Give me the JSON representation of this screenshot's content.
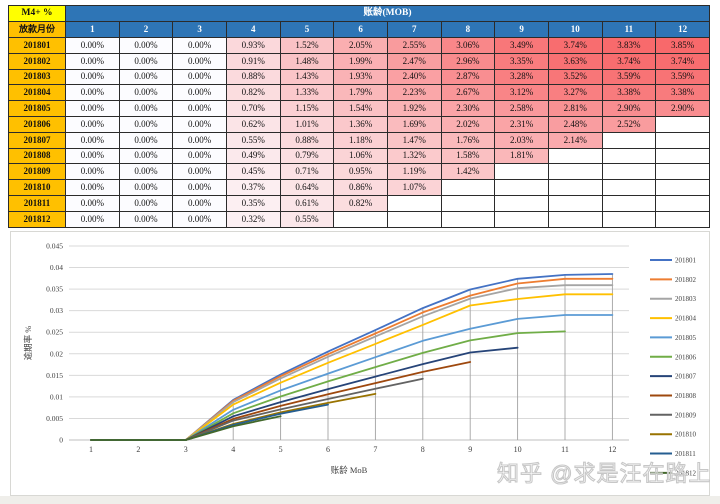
{
  "page": {
    "watermark": "知乎 @求是汪在路上"
  },
  "table": {
    "corner_label": "M4+ %",
    "col_group_header": "账龄(MOB)",
    "row_group_header": "放款月份",
    "mob_columns": [
      "1",
      "2",
      "3",
      "4",
      "5",
      "6",
      "7",
      "8",
      "9",
      "10",
      "11",
      "12"
    ],
    "heatmap": {
      "min_color": "#FCFCFF",
      "max_color": "#F8696B",
      "min_value": 0,
      "max_value": 3.85
    },
    "rows": [
      {
        "vintage": "201801",
        "values_pct": [
          0.0,
          0.0,
          0.0,
          0.93,
          1.52,
          2.05,
          2.55,
          3.06,
          3.49,
          3.74,
          3.83,
          3.85
        ]
      },
      {
        "vintage": "201802",
        "values_pct": [
          0.0,
          0.0,
          0.0,
          0.91,
          1.48,
          1.99,
          2.47,
          2.96,
          3.35,
          3.63,
          3.74,
          3.74
        ]
      },
      {
        "vintage": "201803",
        "values_pct": [
          0.0,
          0.0,
          0.0,
          0.88,
          1.43,
          1.93,
          2.4,
          2.87,
          3.28,
          3.52,
          3.59,
          3.59
        ]
      },
      {
        "vintage": "201804",
        "values_pct": [
          0.0,
          0.0,
          0.0,
          0.82,
          1.33,
          1.79,
          2.23,
          2.67,
          3.12,
          3.27,
          3.38,
          3.38
        ]
      },
      {
        "vintage": "201805",
        "values_pct": [
          0.0,
          0.0,
          0.0,
          0.7,
          1.15,
          1.54,
          1.92,
          2.3,
          2.58,
          2.81,
          2.9,
          2.9
        ]
      },
      {
        "vintage": "201806",
        "values_pct": [
          0.0,
          0.0,
          0.0,
          0.62,
          1.01,
          1.36,
          1.69,
          2.02,
          2.31,
          2.48,
          2.52
        ]
      },
      {
        "vintage": "201807",
        "values_pct": [
          0.0,
          0.0,
          0.0,
          0.55,
          0.88,
          1.18,
          1.47,
          1.76,
          2.03,
          2.14
        ]
      },
      {
        "vintage": "201808",
        "values_pct": [
          0.0,
          0.0,
          0.0,
          0.49,
          0.79,
          1.06,
          1.32,
          1.58,
          1.81
        ]
      },
      {
        "vintage": "201809",
        "values_pct": [
          0.0,
          0.0,
          0.0,
          0.45,
          0.71,
          0.95,
          1.19,
          1.42
        ]
      },
      {
        "vintage": "201810",
        "values_pct": [
          0.0,
          0.0,
          0.0,
          0.37,
          0.64,
          0.86,
          1.07
        ]
      },
      {
        "vintage": "201811",
        "values_pct": [
          0.0,
          0.0,
          0.0,
          0.35,
          0.61,
          0.82
        ]
      },
      {
        "vintage": "201812",
        "values_pct": [
          0.0,
          0.0,
          0.0,
          0.32,
          0.55
        ]
      }
    ]
  },
  "chart_data": {
    "type": "line",
    "title": "",
    "xlabel": "账龄 MoB",
    "ylabel": "逾期率 %",
    "x": [
      1,
      2,
      3,
      4,
      5,
      6,
      7,
      8,
      9,
      10,
      11,
      12
    ],
    "ylim": [
      0,
      0.045
    ],
    "ytick_step": 0.005,
    "grid": true,
    "drop_lines": true,
    "legend_position": "right",
    "series": [
      {
        "name": "201801",
        "color": "#4472C4",
        "values": [
          0,
          0,
          0,
          0.0093,
          0.0152,
          0.0205,
          0.0255,
          0.0306,
          0.0349,
          0.0374,
          0.0383,
          0.0385
        ]
      },
      {
        "name": "201802",
        "color": "#ED7D31",
        "values": [
          0,
          0,
          0,
          0.0091,
          0.0148,
          0.0199,
          0.0247,
          0.0296,
          0.0335,
          0.0363,
          0.0374,
          0.0374
        ]
      },
      {
        "name": "201803",
        "color": "#A5A5A5",
        "values": [
          0,
          0,
          0,
          0.0088,
          0.0143,
          0.0193,
          0.024,
          0.0287,
          0.0328,
          0.0352,
          0.0359,
          0.0359
        ]
      },
      {
        "name": "201804",
        "color": "#FFC000",
        "values": [
          0,
          0,
          0,
          0.0082,
          0.0133,
          0.0179,
          0.0223,
          0.0267,
          0.0312,
          0.0327,
          0.0338,
          0.0338
        ]
      },
      {
        "name": "201805",
        "color": "#5B9BD5",
        "values": [
          0,
          0,
          0,
          0.007,
          0.0115,
          0.0154,
          0.0192,
          0.023,
          0.0258,
          0.0281,
          0.029,
          0.029
        ]
      },
      {
        "name": "201806",
        "color": "#70AD47",
        "values": [
          0,
          0,
          0,
          0.0062,
          0.0101,
          0.0136,
          0.0169,
          0.0202,
          0.0231,
          0.0248,
          0.0252
        ]
      },
      {
        "name": "201807",
        "color": "#264478",
        "values": [
          0,
          0,
          0,
          0.0055,
          0.0088,
          0.0118,
          0.0147,
          0.0176,
          0.0203,
          0.0214
        ]
      },
      {
        "name": "201808",
        "color": "#9E480E",
        "values": [
          0,
          0,
          0,
          0.0049,
          0.0079,
          0.0106,
          0.0132,
          0.0158,
          0.0181
        ]
      },
      {
        "name": "201809",
        "color": "#636363",
        "values": [
          0,
          0,
          0,
          0.0045,
          0.0071,
          0.0095,
          0.0119,
          0.0142
        ]
      },
      {
        "name": "201810",
        "color": "#997300",
        "values": [
          0,
          0,
          0,
          0.0037,
          0.0064,
          0.0086,
          0.0107
        ]
      },
      {
        "name": "201811",
        "color": "#255E91",
        "values": [
          0,
          0,
          0,
          0.0035,
          0.0061,
          0.0082
        ]
      },
      {
        "name": "201812",
        "color": "#43682B",
        "values": [
          0,
          0,
          0,
          0.0032,
          0.0055
        ]
      }
    ],
    "axis_colors": {
      "gridline": "#d9d9d9",
      "axis_line": "#bfbfbf",
      "drop_line": "#a3a3a3",
      "tick_text": "#404040"
    }
  }
}
